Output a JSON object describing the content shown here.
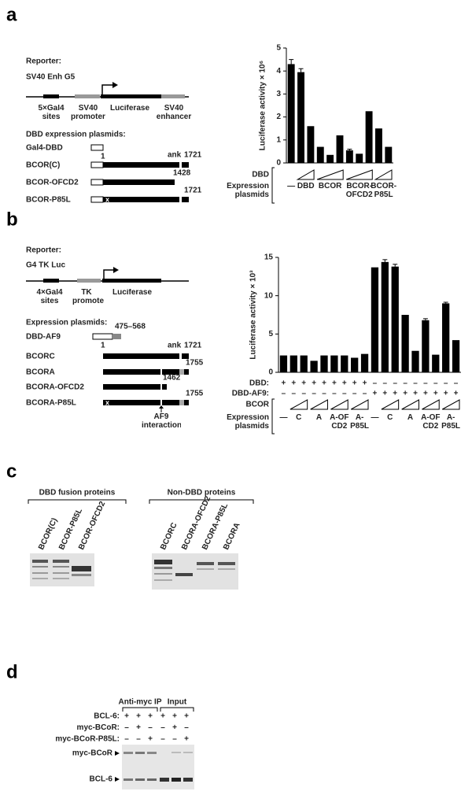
{
  "panels": {
    "a": {
      "letter": "a",
      "reporter_heading": "Reporter:",
      "reporter_name": "SV40 Enh G5",
      "reporter_elements": [
        "5×Gal4 sites",
        "SV40 promoter",
        "Luciferase",
        "SV40 enhancer"
      ],
      "plasmids_heading": "DBD expression plasmids:",
      "plasmids": [
        {
          "name": "Gal4-DBD"
        },
        {
          "name": "BCOR(C)",
          "start": "1",
          "domain": "ank",
          "end": "1721"
        },
        {
          "name": "BCOR-OFCD2",
          "end": "1428"
        },
        {
          "name": "BCOR-P85L",
          "mutation": "x",
          "end": "1721"
        }
      ]
    },
    "b": {
      "letter": "b",
      "reporter_heading": "Reporter:",
      "reporter_name": "G4 TK Luc",
      "reporter_elements": [
        "4×Gal4 sites",
        "TK promoter",
        "Luciferase"
      ],
      "plasmids_heading": "Expression plasmids:",
      "plasmids": [
        {
          "name": "DBD-AF9",
          "range": "475–568"
        },
        {
          "name": "BCORC",
          "start": "1",
          "domain": "ank",
          "end": "1721"
        },
        {
          "name": "BCORA",
          "end": "1755"
        },
        {
          "name": "BCORA-OFCD2",
          "end": "1462"
        },
        {
          "name": "BCORA-P85L",
          "mutation": "x",
          "end": "1755"
        }
      ],
      "site_label": "AF9 interaction"
    },
    "c": {
      "letter": "c",
      "groups": [
        {
          "title": "DBD fusion proteins",
          "lanes": [
            "BCOR(C)",
            "BCOR-P85L",
            "BCOR-OFCD2"
          ]
        },
        {
          "title": "Non-DBD proteins",
          "lanes": [
            "BCORC",
            "BCORA-OFCD2",
            "BCORA-P85L",
            "BCORA"
          ]
        }
      ]
    },
    "d": {
      "letter": "d",
      "headers": [
        "Anti-myc IP",
        "Input"
      ],
      "rows": [
        {
          "label": "BCL-6:",
          "signs": [
            "+",
            "+",
            "+",
            "+",
            "+",
            "+"
          ]
        },
        {
          "label": "myc-BCoR:",
          "signs": [
            "–",
            "+",
            "–",
            "–",
            "+",
            "–"
          ]
        },
        {
          "label": "myc-BCoR-P85L:",
          "signs": [
            "–",
            "–",
            "+",
            "–",
            "–",
            "+"
          ]
        }
      ],
      "markers": [
        "myc-BCoR",
        "BCL-6"
      ]
    }
  },
  "chart_data": [
    {
      "type": "bar",
      "y_label": "Luciferase activity × 10⁶",
      "color": "#000000",
      "ylim": [
        0,
        5
      ],
      "yticks": [
        0,
        1,
        2,
        3,
        4,
        5
      ],
      "categories": [
        "—",
        "DBD",
        null,
        "BCOR",
        null,
        null,
        "BCOR-OFCD2",
        null,
        null,
        "BCOR-P85L",
        null
      ],
      "values": [
        4.3,
        3.95,
        1.6,
        0.7,
        0.35,
        1.2,
        0.55,
        0.4,
        2.25,
        1.5,
        0.7
      ],
      "errors": [
        0.2,
        0.15,
        null,
        null,
        null,
        null,
        0.05,
        null,
        null,
        null,
        null
      ],
      "rows": [
        {
          "label": "DBD"
        }
      ],
      "category_label": "Expression plasmids"
    },
    {
      "type": "bar",
      "y_label": "Luciferase activity × 10³",
      "color": "#000000",
      "ylim": [
        0,
        15
      ],
      "yticks": [
        0,
        5,
        10,
        15
      ],
      "categories": [
        "—",
        "C",
        null,
        "A",
        null,
        "A-OF CD2",
        null,
        "A-P85L",
        null,
        "—",
        "C",
        null,
        "A",
        null,
        "A-OF CD2",
        null,
        "A-P85L",
        null
      ],
      "values": [
        2.2,
        2.2,
        2.2,
        1.5,
        2.2,
        2.2,
        2.2,
        1.9,
        2.4,
        13.7,
        14.4,
        13.8,
        7.5,
        2.8,
        6.8,
        2.3,
        9,
        4.2
      ],
      "errors": [
        null,
        null,
        null,
        null,
        null,
        null,
        null,
        null,
        null,
        null,
        0.3,
        0.3,
        null,
        null,
        0.2,
        null,
        0.15,
        null
      ],
      "rows": [
        {
          "label": "DBD:",
          "signs": [
            "+",
            "+",
            "+",
            "+",
            "+",
            "+",
            "+",
            "+",
            "+",
            "–",
            "–",
            "–",
            "–",
            "–",
            "–",
            "–",
            "–",
            "–"
          ]
        },
        {
          "label": "DBD-AF9:",
          "signs": [
            "–",
            "–",
            "–",
            "–",
            "–",
            "–",
            "–",
            "–",
            "–",
            "+",
            "+",
            "+",
            "+",
            "+",
            "+",
            "+",
            "+",
            "+"
          ]
        },
        {
          "label": "BCOR"
        }
      ],
      "category_label": "Expression plasmids"
    }
  ]
}
